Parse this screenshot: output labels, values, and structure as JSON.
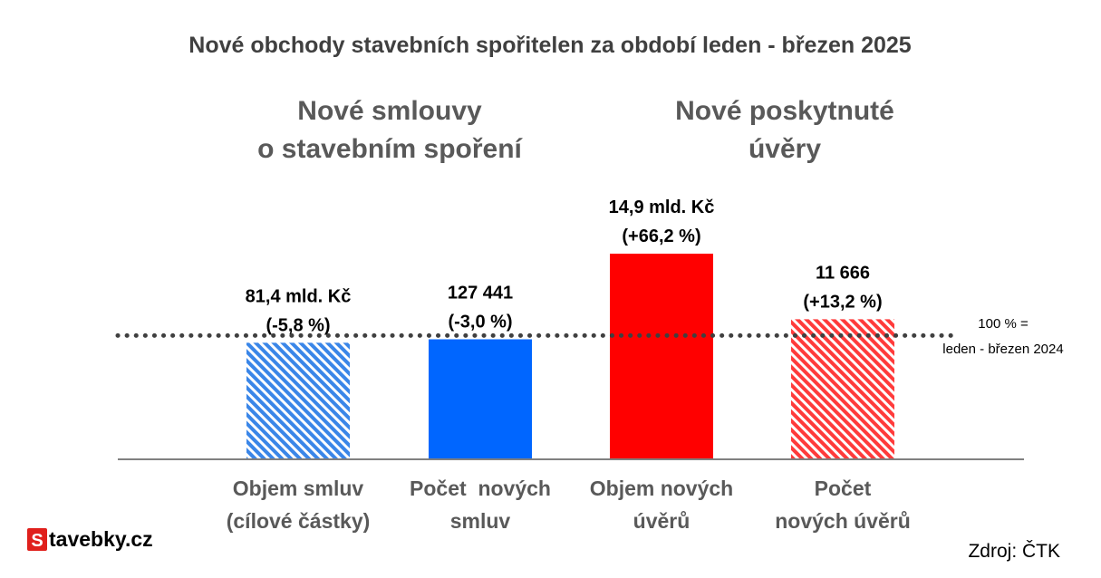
{
  "chart_data": {
    "type": "bar",
    "title": "Nové obchody stavebních spořitelen za období leden - březen 2025",
    "groups": [
      {
        "title_line1": "Nové smlouvy",
        "title_line2": "o stavebním spoření"
      },
      {
        "title_line1": "Nové poskytnuté",
        "title_line2": "úvěry"
      }
    ],
    "categories": [
      {
        "label_line1": "Objem smluv",
        "label_line2": "(cílové částky)"
      },
      {
        "label_line1": "Počet  nových",
        "label_line2": "smluv"
      },
      {
        "label_line1": "Objem nových",
        "label_line2": "úvěrů"
      },
      {
        "label_line1": "Počet",
        "label_line2": "nových úvěrů"
      }
    ],
    "values": [
      94.2,
      97.0,
      166.2,
      113.2
    ],
    "unit": "%",
    "ylim": [
      0,
      170
    ],
    "baseline_value": 100,
    "data_labels": [
      {
        "line1": "81,4 mld. Kč",
        "line2": "(-5,8 %)"
      },
      {
        "line1": "127 441",
        "line2": "(-3,0 %)"
      },
      {
        "line1": "14,9 mld. Kč",
        "line2": "(+66,2 %)"
      },
      {
        "line1": "11 666",
        "line2": "(+13,2 %)"
      }
    ],
    "bar_colors": [
      "#3a86e8",
      "#0066ff",
      "#ff0000",
      "#ff3b3b"
    ],
    "bar_hatched": [
      true,
      false,
      false,
      true
    ],
    "reference_note_line1": "100 % =",
    "reference_note_line2": "leden - březen 2024",
    "grid": false,
    "legend": "none"
  },
  "logo": {
    "badge": "S",
    "text": "tavebky.cz",
    "badge_color": "#e0201c"
  },
  "source": "Zdroj: ČTK"
}
